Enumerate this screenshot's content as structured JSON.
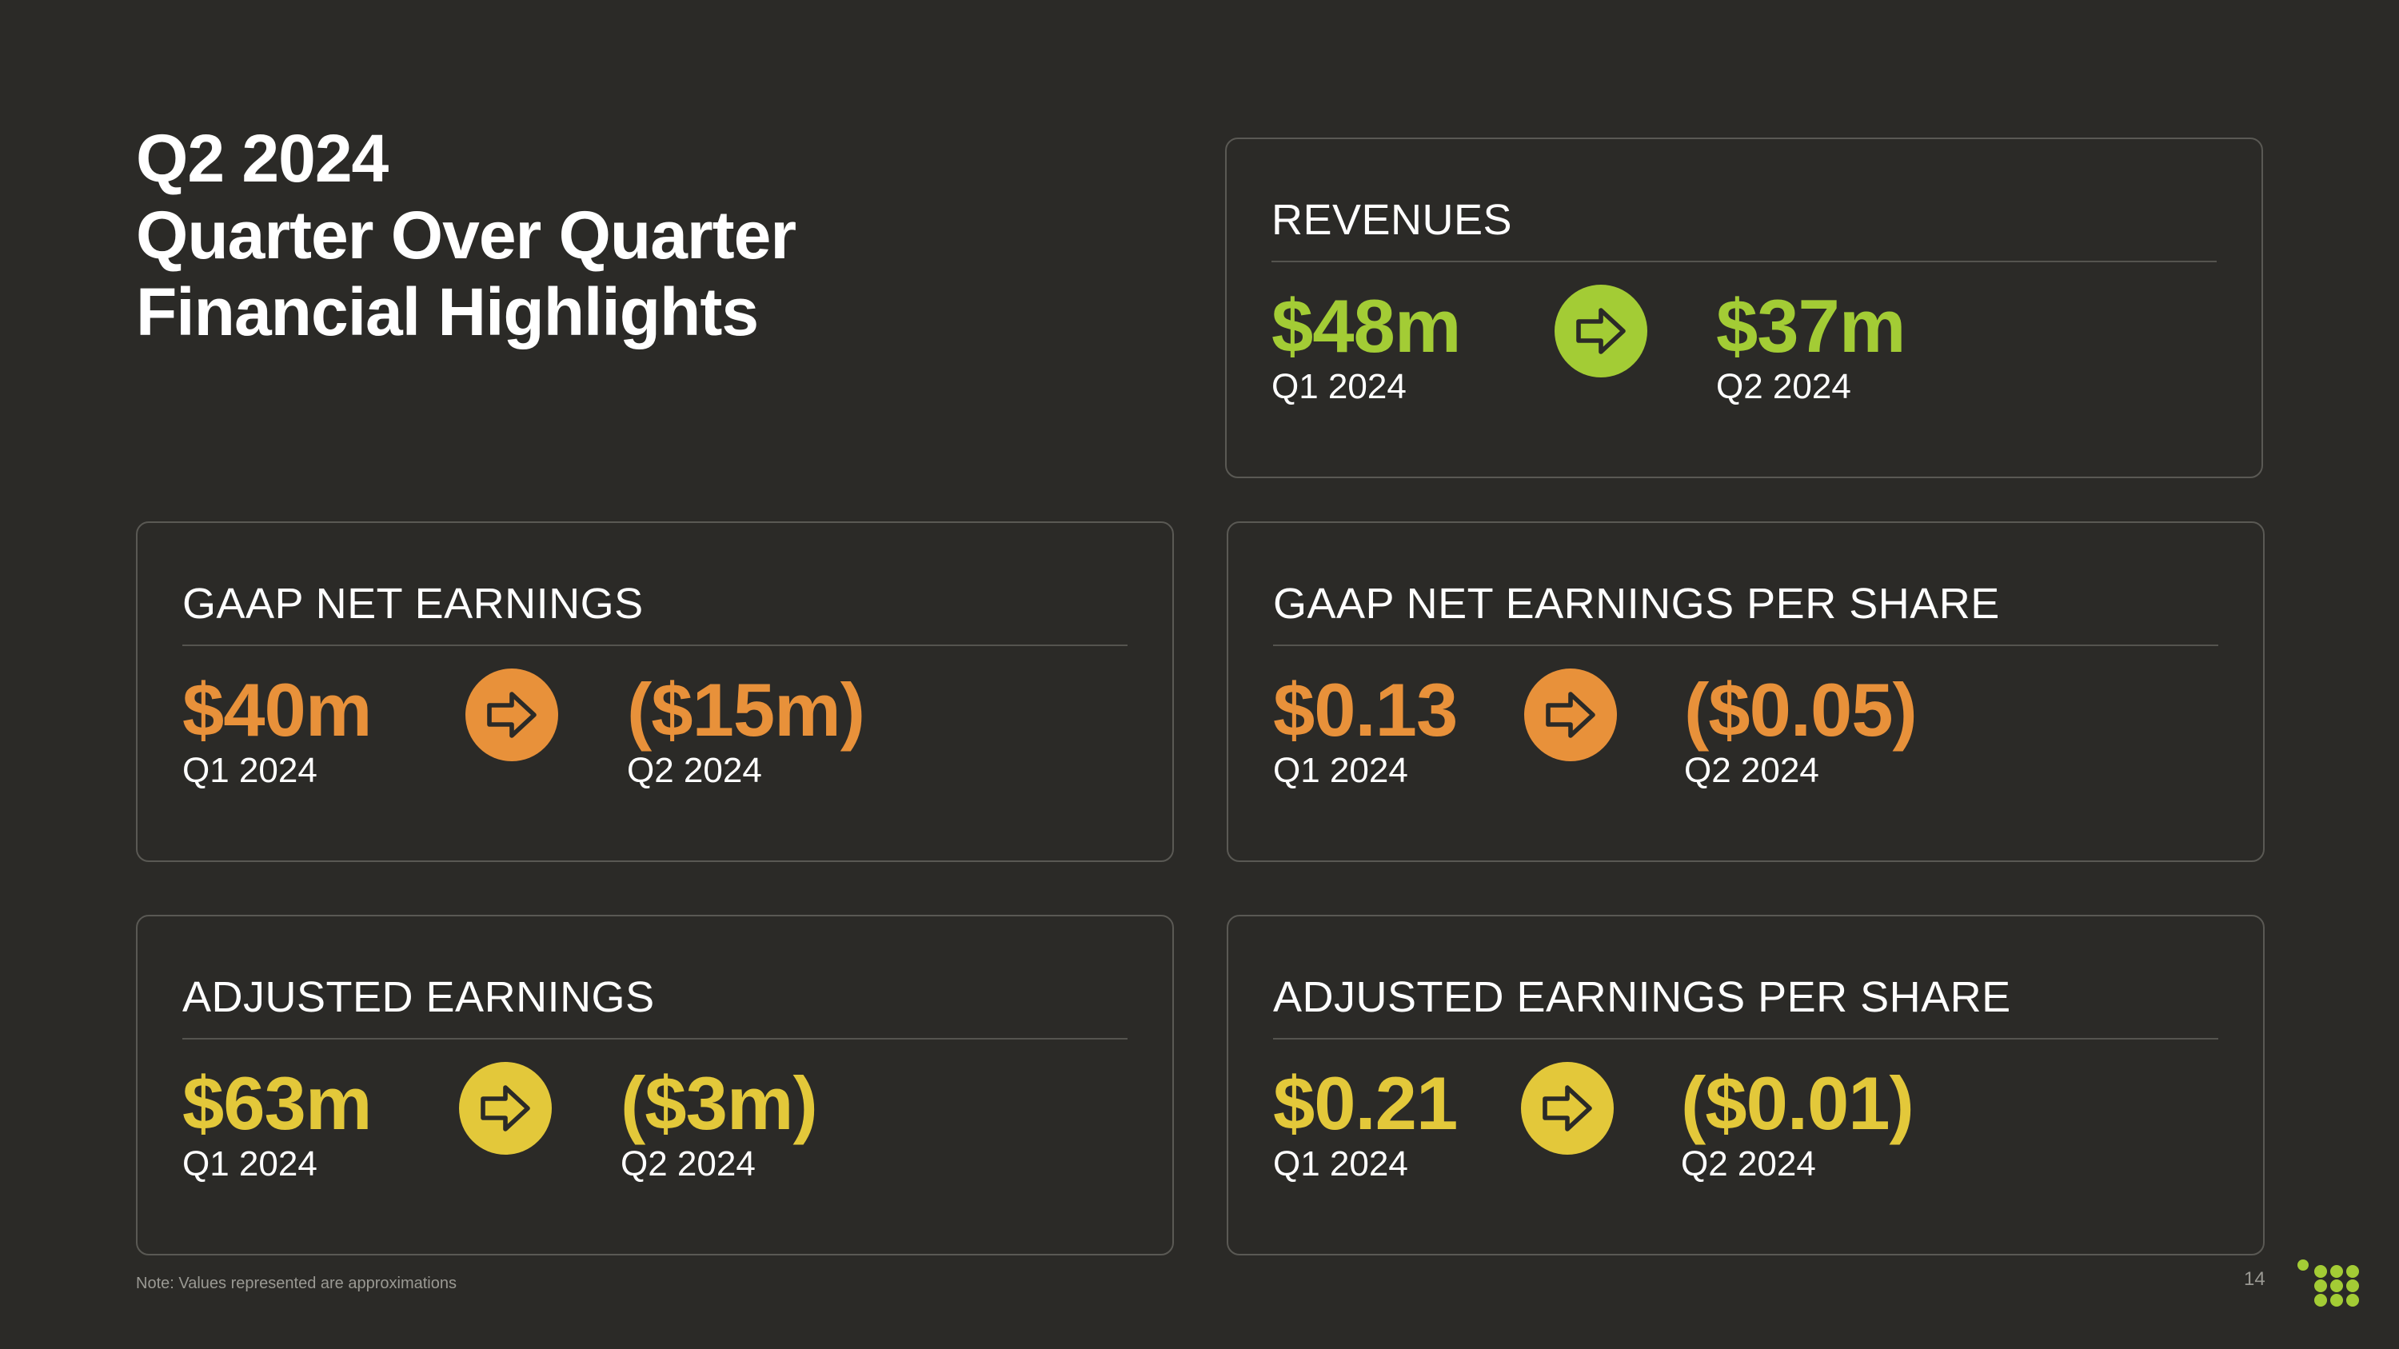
{
  "title": {
    "line1": "Q2 2024",
    "line2": "Quarter Over Quarter",
    "line3": "Financial Highlights"
  },
  "cards": {
    "revenues": {
      "label": "REVENUES",
      "q1_value": "$48m",
      "q1_period": "Q1 2024",
      "q2_value": "$37m",
      "q2_period": "Q2 2024",
      "color": "#a3cc35"
    },
    "gaap_net_earnings": {
      "label": "GAAP NET EARNINGS",
      "q1_value": "$40m",
      "q1_period": "Q1 2024",
      "q2_value": "($15m)",
      "q2_period": "Q2 2024",
      "color": "#e8913a"
    },
    "gaap_eps": {
      "label": "GAAP NET EARNINGS PER SHARE",
      "q1_value": "$0.13",
      "q1_period": "Q1 2024",
      "q2_value": "($0.05)",
      "q2_period": "Q2 2024",
      "color": "#e8913a"
    },
    "adjusted_earnings": {
      "label": "ADJUSTED EARNINGS",
      "q1_value": "$63m",
      "q1_period": "Q1 2024",
      "q2_value": "($3m)",
      "q2_period": "Q2 2024",
      "color": "#e3c83a"
    },
    "adjusted_eps": {
      "label": "ADJUSTED EARNINGS PER SHARE",
      "q1_value": "$0.21",
      "q1_period": "Q1 2024",
      "q2_value": "($0.01)",
      "q2_period": "Q2 2024",
      "color": "#e3c83a"
    }
  },
  "icons": {
    "arrow": "arrow-right-icon",
    "logo": "dot-grid-logo-icon"
  },
  "footer": {
    "note": "Note: Values represented are approximations",
    "page_number": "14"
  },
  "colors": {
    "background": "#2b2a27",
    "border": "#5a5954"
  }
}
